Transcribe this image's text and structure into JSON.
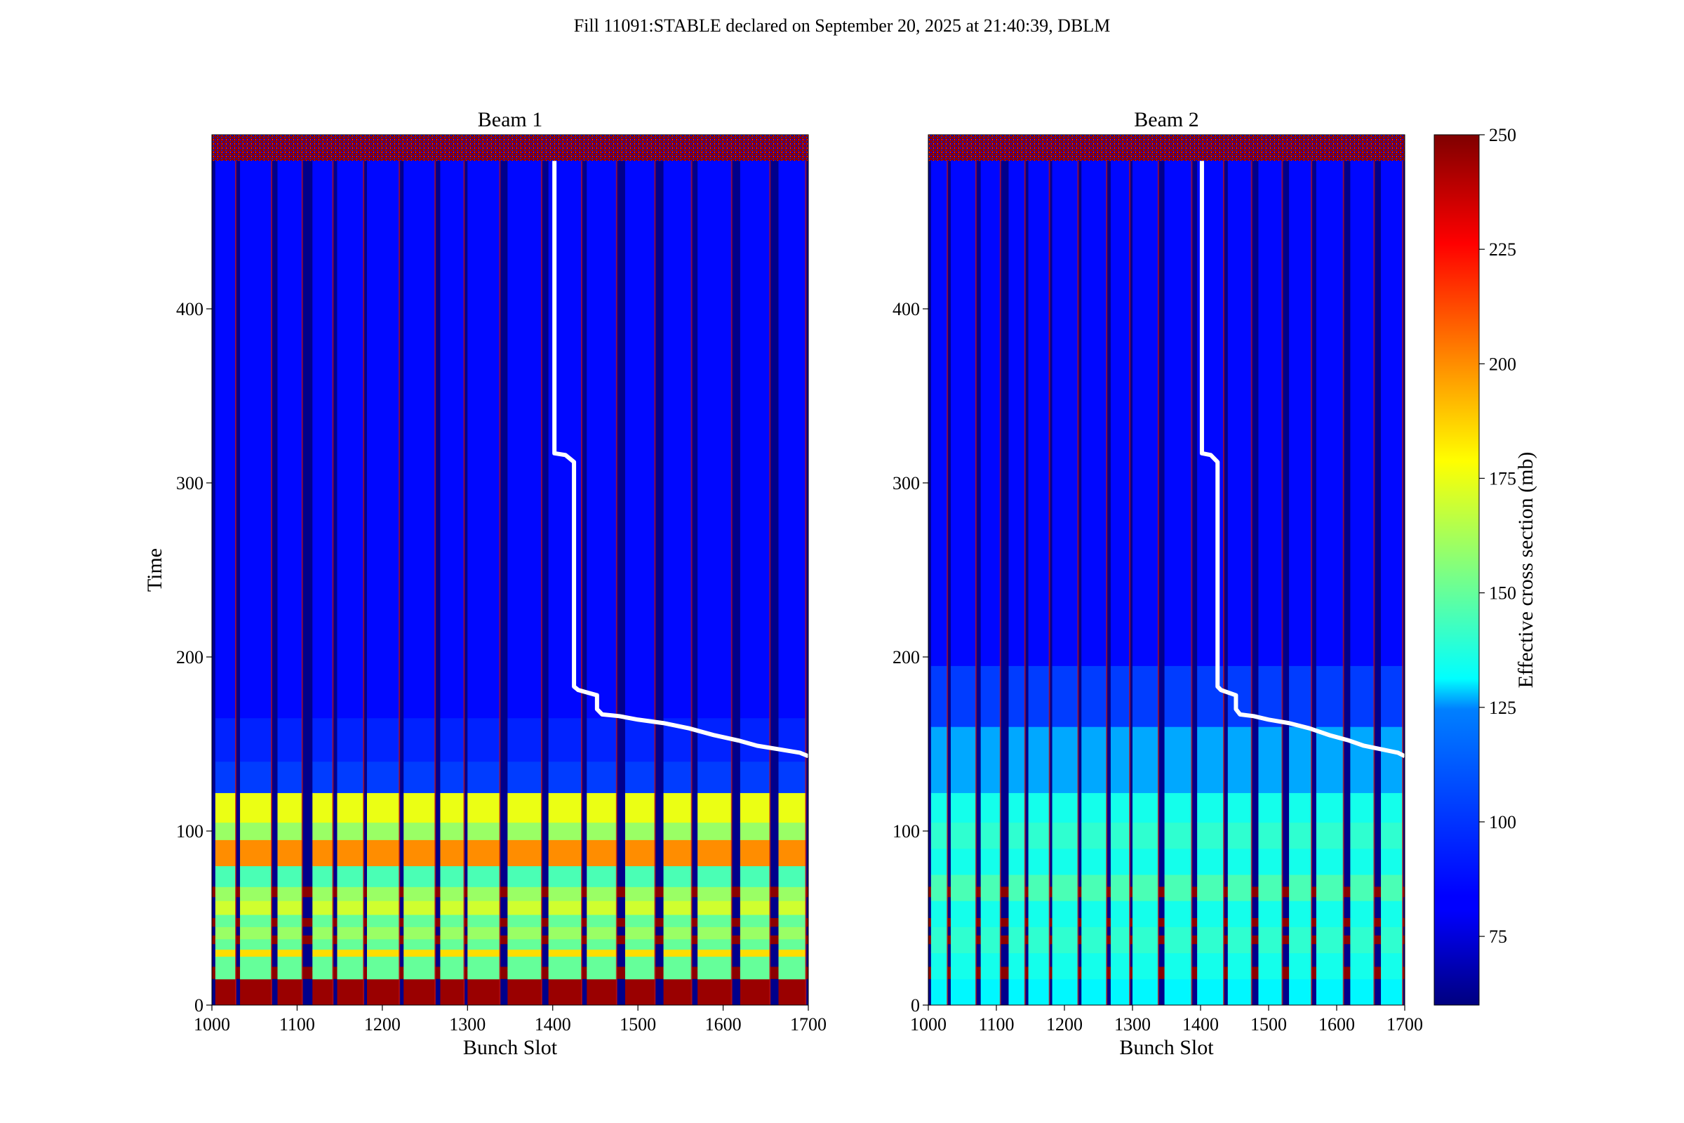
{
  "figure": {
    "suptitle": "Fill 11091:STABLE declared on September 20, 2025 at 21:40:39, DBLM"
  },
  "colorbar": {
    "label": "Effective cross section (mb)",
    "colormap": "jet",
    "range": [
      60,
      250
    ],
    "ticks": [
      "75",
      "100",
      "125",
      "150",
      "175",
      "200",
      "225",
      "250"
    ],
    "tick_values": [
      75,
      100,
      125,
      150,
      175,
      200,
      225,
      250
    ]
  },
  "chart_data": [
    {
      "type": "heatmap",
      "title": "Beam 1",
      "xlabel": "Bunch Slot",
      "ylabel": "Time",
      "xlim": [
        1000,
        1700
      ],
      "ylim": [
        0,
        500
      ],
      "xticks": [
        "1000",
        "1100",
        "1200",
        "1300",
        "1400",
        "1500",
        "1600",
        "1700"
      ],
      "yticks": [
        "0",
        "100",
        "200",
        "300",
        "400"
      ],
      "trains": [
        [
          1004,
          1028
        ],
        [
          1033,
          1070
        ],
        [
          1077,
          1106
        ],
        [
          1118,
          1142
        ],
        [
          1147,
          1178
        ],
        [
          1182,
          1220
        ],
        [
          1225,
          1262
        ],
        [
          1268,
          1296
        ],
        [
          1300,
          1338
        ],
        [
          1347,
          1387
        ],
        [
          1395,
          1434
        ],
        [
          1440,
          1475
        ],
        [
          1485,
          1520
        ],
        [
          1530,
          1563
        ],
        [
          1570,
          1610
        ],
        [
          1620,
          1655
        ],
        [
          1665,
          1697
        ]
      ],
      "white_line": [
        [
          1700,
          143
        ],
        [
          1690,
          145
        ],
        [
          1665,
          147
        ],
        [
          1640,
          149
        ],
        [
          1618,
          152
        ],
        [
          1590,
          155
        ],
        [
          1560,
          159
        ],
        [
          1530,
          162
        ],
        [
          1500,
          164
        ],
        [
          1478,
          166
        ],
        [
          1458,
          167
        ],
        [
          1452,
          170
        ],
        [
          1452,
          178
        ],
        [
          1430,
          181
        ],
        [
          1425,
          183
        ],
        [
          1425,
          312
        ],
        [
          1415,
          316
        ],
        [
          1402,
          317
        ],
        [
          1402,
          485
        ]
      ]
    },
    {
      "type": "heatmap",
      "title": "Beam 2",
      "xlabel": "Bunch Slot",
      "ylabel": "",
      "xlim": [
        1000,
        1700
      ],
      "ylim": [
        0,
        500
      ],
      "xticks": [
        "1000",
        "1100",
        "1200",
        "1300",
        "1400",
        "1500",
        "1600",
        "1700"
      ],
      "yticks": [
        "0",
        "100",
        "200",
        "300",
        "400"
      ],
      "trains": [
        [
          1004,
          1028
        ],
        [
          1033,
          1070
        ],
        [
          1077,
          1106
        ],
        [
          1118,
          1142
        ],
        [
          1147,
          1178
        ],
        [
          1182,
          1220
        ],
        [
          1225,
          1262
        ],
        [
          1268,
          1296
        ],
        [
          1300,
          1338
        ],
        [
          1347,
          1387
        ],
        [
          1395,
          1434
        ],
        [
          1440,
          1475
        ],
        [
          1485,
          1520
        ],
        [
          1530,
          1563
        ],
        [
          1570,
          1610
        ],
        [
          1620,
          1655
        ],
        [
          1665,
          1697
        ]
      ],
      "white_line": [
        [
          1700,
          143
        ],
        [
          1690,
          145
        ],
        [
          1665,
          147
        ],
        [
          1640,
          149
        ],
        [
          1618,
          152
        ],
        [
          1590,
          155
        ],
        [
          1560,
          159
        ],
        [
          1530,
          162
        ],
        [
          1500,
          164
        ],
        [
          1478,
          166
        ],
        [
          1458,
          167
        ],
        [
          1452,
          170
        ],
        [
          1452,
          178
        ],
        [
          1430,
          181
        ],
        [
          1425,
          183
        ],
        [
          1425,
          312
        ],
        [
          1415,
          316
        ],
        [
          1402,
          317
        ],
        [
          1402,
          485
        ]
      ]
    }
  ]
}
